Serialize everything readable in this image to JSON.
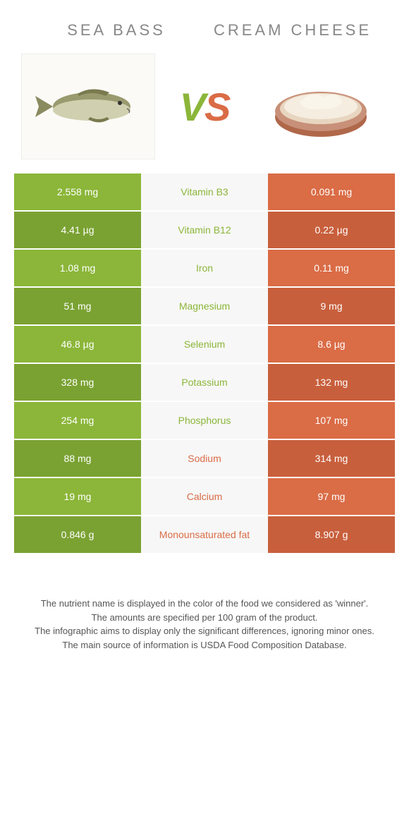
{
  "header": {
    "left_title": "SEA BASS",
    "right_title": "CREAM CHEESE",
    "vs_v": "V",
    "vs_s": "S"
  },
  "colors": {
    "left_bg": "#8bb639",
    "right_bg": "#da6c46",
    "left_dark": "#7aa232",
    "right_dark": "#c85f3c",
    "nutrient_bg": "#f7f7f7",
    "left_text": "#8bb639",
    "right_text": "#da6c46"
  },
  "rows": [
    {
      "left": "2.558 mg",
      "nutrient": "Vitamin B3",
      "right": "0.091 mg",
      "winner": "left"
    },
    {
      "left": "4.41 µg",
      "nutrient": "Vitamin B12",
      "right": "0.22 µg",
      "winner": "left"
    },
    {
      "left": "1.08 mg",
      "nutrient": "Iron",
      "right": "0.11 mg",
      "winner": "left"
    },
    {
      "left": "51 mg",
      "nutrient": "Magnesium",
      "right": "9 mg",
      "winner": "left"
    },
    {
      "left": "46.8 µg",
      "nutrient": "Selenium",
      "right": "8.6 µg",
      "winner": "left"
    },
    {
      "left": "328 mg",
      "nutrient": "Potassium",
      "right": "132 mg",
      "winner": "left"
    },
    {
      "left": "254 mg",
      "nutrient": "Phosphorus",
      "right": "107 mg",
      "winner": "left"
    },
    {
      "left": "88 mg",
      "nutrient": "Sodium",
      "right": "314 mg",
      "winner": "right"
    },
    {
      "left": "19 mg",
      "nutrient": "Calcium",
      "right": "97 mg",
      "winner": "right"
    },
    {
      "left": "0.846 g",
      "nutrient": "Monounsaturated fat",
      "right": "8.907 g",
      "winner": "right"
    }
  ],
  "footer": {
    "line1": "The nutrient name is displayed in the color of the food we considered as 'winner'.",
    "line2": "The amounts are specified per 100 gram of the product.",
    "line3": "The infographic aims to display only the significant differences, ignoring minor ones.",
    "line4": "The main source of information is USDA Food Composition Database."
  },
  "images": {
    "left_alt": "fish-illustration",
    "right_alt": "cream-cheese-bowl"
  }
}
